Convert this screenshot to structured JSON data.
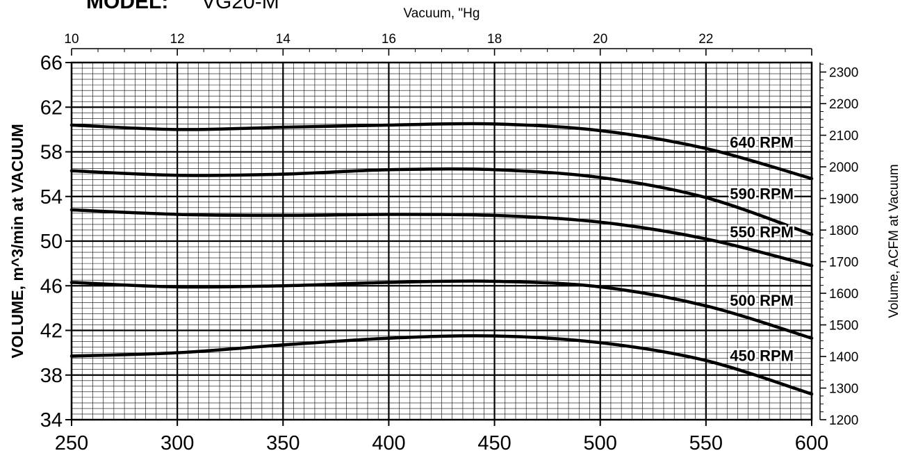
{
  "header": {
    "model_label": "MODEL:",
    "model_value": "VG20-M"
  },
  "chart_data": {
    "type": "line",
    "title": "",
    "xlabel": "",
    "ylabel": "VOLUME, m^3/min at VACUUM",
    "x_range": [
      250,
      600
    ],
    "y_range": [
      34,
      66
    ],
    "x_ticks": [
      "250",
      "300",
      "350",
      "400",
      "450",
      "500",
      "550",
      "600"
    ],
    "y_ticks": [
      "34",
      "38",
      "42",
      "46",
      "50",
      "54",
      "58",
      "62",
      "66"
    ],
    "top_axis": {
      "label": "Vacuum, \"Hg",
      "range": [
        10,
        24
      ],
      "ticks": [
        "10",
        "12",
        "14",
        "16",
        "18",
        "20",
        "22"
      ]
    },
    "right_axis": {
      "label": "Volume, ACFM at Vacuum",
      "range": [
        1200,
        2330
      ],
      "ticks": [
        "1200",
        "1300",
        "1400",
        "1500",
        "1600",
        "1700",
        "1800",
        "1900",
        "2000",
        "2100",
        "2200",
        "2300"
      ]
    },
    "grid": true,
    "series": [
      {
        "name": "640 RPM",
        "x": [
          250,
          300,
          350,
          400,
          450,
          500,
          550,
          600
        ],
        "y": [
          60.4,
          60.0,
          60.2,
          60.4,
          60.5,
          59.9,
          58.3,
          55.6
        ]
      },
      {
        "name": "590 RPM",
        "x": [
          250,
          300,
          350,
          400,
          450,
          500,
          550,
          600
        ],
        "y": [
          56.3,
          55.9,
          56.0,
          56.4,
          56.4,
          55.7,
          53.9,
          50.6
        ]
      },
      {
        "name": "550 RPM",
        "x": [
          250,
          300,
          350,
          400,
          450,
          500,
          550,
          600
        ],
        "y": [
          52.8,
          52.4,
          52.3,
          52.4,
          52.3,
          51.7,
          50.2,
          47.8
        ]
      },
      {
        "name": "500 RPM",
        "x": [
          250,
          300,
          350,
          400,
          450,
          500,
          550,
          600
        ],
        "y": [
          46.3,
          45.9,
          46.0,
          46.3,
          46.4,
          45.9,
          44.2,
          41.3
        ]
      },
      {
        "name": "450 RPM",
        "x": [
          250,
          300,
          350,
          400,
          450,
          500,
          550,
          600
        ],
        "y": [
          39.7,
          40.0,
          40.7,
          41.3,
          41.5,
          40.9,
          39.3,
          36.3
        ]
      }
    ]
  }
}
